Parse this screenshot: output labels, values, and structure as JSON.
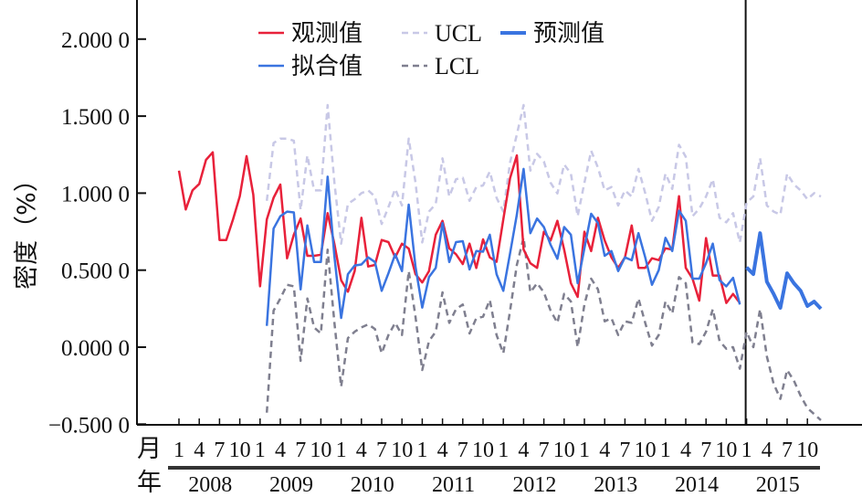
{
  "chart_data": {
    "type": "line",
    "ylabel": "密度（%）",
    "x_row_labels": {
      "month": "月",
      "year": "年"
    },
    "month_tick_labels": [
      "1",
      "4",
      "7",
      "10"
    ],
    "years": [
      "2008",
      "2009",
      "2010",
      "2011",
      "2012",
      "2013",
      "2014",
      "2015"
    ],
    "ylim": [
      -0.5,
      2.0
    ],
    "y_ticks": [
      {
        "value": 2.0,
        "label": "2.000 0"
      },
      {
        "value": 1.5,
        "label": "1.500 0"
      },
      {
        "value": 1.0,
        "label": "1.000 0"
      },
      {
        "value": 0.5,
        "label": "0.500 0"
      },
      {
        "value": 0.0,
        "label": "0.000 0"
      },
      {
        "value": -0.5,
        "label": "−0.500 0"
      }
    ],
    "xlim": [
      "2008-01",
      "2015-12"
    ],
    "divider_at": "2015-01",
    "grid": false,
    "legend_position": "top",
    "series": [
      {
        "name": "观测值",
        "color": "#e8213a",
        "style": "solid",
        "start": "2008-01",
        "values": [
          1.146,
          0.894,
          1.018,
          1.06,
          1.216,
          1.265,
          0.696,
          0.696,
          0.83,
          0.98,
          1.24,
          0.99,
          0.395,
          0.83,
          0.97,
          1.056,
          0.577,
          0.73,
          0.835,
          0.593,
          0.593,
          0.6,
          0.87,
          0.67,
          0.435,
          0.36,
          0.494,
          0.84,
          0.524,
          0.534,
          0.696,
          0.682,
          0.583,
          0.672,
          0.64,
          0.474,
          0.42,
          0.494,
          0.73,
          0.82,
          0.642,
          0.603,
          0.54,
          0.672,
          0.514,
          0.7,
          0.583,
          0.554,
          0.83,
          1.097,
          1.245,
          0.634,
          0.545,
          0.515,
          0.75,
          0.693,
          0.82,
          0.634,
          0.415,
          0.326,
          0.75,
          0.624,
          0.84,
          0.693,
          0.583,
          0.515,
          0.583,
          0.79,
          0.515,
          0.515,
          0.577,
          0.565,
          0.642,
          0.634,
          0.98,
          0.515,
          0.445,
          0.302,
          0.708,
          0.465,
          0.465,
          0.287,
          0.346,
          0.287
        ]
      },
      {
        "name": "拟合值",
        "color": "#3a74e0",
        "style": "solid",
        "start": "2009-02",
        "values": [
          0.138,
          0.77,
          0.85,
          0.88,
          0.875,
          0.375,
          0.79,
          0.553,
          0.553,
          1.107,
          0.59,
          0.19,
          0.474,
          0.53,
          0.537,
          0.583,
          0.553,
          0.366,
          0.48,
          0.603,
          0.494,
          0.925,
          0.524,
          0.257,
          0.455,
          0.515,
          0.806,
          0.553,
          0.682,
          0.688,
          0.505,
          0.624,
          0.62,
          0.73,
          0.474,
          0.366,
          0.61,
          0.86,
          1.157,
          0.74,
          0.835,
          0.78,
          0.664,
          0.574,
          0.78,
          0.73,
          0.415,
          0.642,
          0.866,
          0.806,
          0.593,
          0.624,
          0.494,
          0.583,
          0.564,
          0.74,
          0.583,
          0.405,
          0.5,
          0.71,
          0.624,
          0.886,
          0.82,
          0.445,
          0.445,
          0.545,
          0.672,
          0.435,
          0.395,
          0.45,
          0.277
        ]
      },
      {
        "name": "UCL",
        "color": "#c8c8e6",
        "style": "dashed",
        "start": "2009-02",
        "values": [
          0.95,
          1.325,
          1.354,
          1.354,
          1.34,
          0.89,
          1.245,
          1.018,
          1.018,
          1.572,
          1.07,
          0.672,
          0.93,
          0.96,
          1.0,
          1.018,
          0.978,
          0.8,
          0.91,
          1.027,
          0.92,
          1.354,
          1.07,
          0.68,
          0.88,
          0.93,
          1.226,
          0.978,
          1.09,
          1.1,
          0.95,
          1.04,
          1.05,
          1.14,
          0.97,
          0.88,
          1.2,
          1.38,
          1.572,
          1.146,
          1.255,
          1.206,
          1.067,
          0.998,
          1.186,
          1.127,
          0.85,
          1.067,
          1.275,
          1.166,
          1.018,
          1.04,
          0.92,
          1.018,
          0.978,
          1.157,
          1.0,
          0.82,
          0.91,
          1.127,
          1.027,
          1.314,
          1.236,
          0.85,
          0.9,
          0.978,
          1.09,
          0.84,
          0.81,
          0.87,
          0.68,
          0.939,
          0.978,
          1.226,
          0.92,
          0.88,
          0.86,
          1.127,
          1.057,
          1.018,
          0.96,
          1.0,
          0.978
        ]
      },
      {
        "name": "预测值",
        "color": "#3a74e0",
        "style": "solid-thick",
        "start": "2015-01",
        "values": [
          0.518,
          0.474,
          0.74,
          0.425,
          0.346,
          0.255,
          0.48,
          0.415,
          0.366,
          0.267,
          0.296,
          0.249
        ]
      },
      {
        "name": "LCL",
        "color": "#7f7f8f",
        "style": "dashed",
        "start": "2009-02",
        "values": [
          -0.425,
          0.237,
          0.316,
          0.405,
          0.395,
          -0.089,
          0.316,
          0.128,
          0.089,
          0.633,
          0.16,
          -0.257,
          0.059,
          0.1,
          0.128,
          0.148,
          0.118,
          -0.04,
          0.079,
          0.158,
          0.079,
          0.494,
          0.198,
          -0.148,
          0.04,
          0.1,
          0.356,
          0.158,
          0.247,
          0.277,
          0.089,
          0.188,
          0.198,
          0.306,
          0.079,
          -0.04,
          0.237,
          0.534,
          0.712,
          0.356,
          0.415,
          0.356,
          0.237,
          0.158,
          0.346,
          0.297,
          0.0,
          0.277,
          0.445,
          0.376,
          0.168,
          0.188,
          0.079,
          0.168,
          0.158,
          0.316,
          0.158,
          0.01,
          0.079,
          0.297,
          0.218,
          0.455,
          0.415,
          0.03,
          0.02,
          0.1,
          0.247,
          0.04,
          -0.01,
          0.0,
          -0.14,
          0.1,
          0.0,
          0.247,
          -0.06,
          -0.237,
          -0.336,
          -0.148,
          -0.217,
          -0.316,
          -0.395,
          -0.435,
          -0.474
        ]
      }
    ]
  }
}
